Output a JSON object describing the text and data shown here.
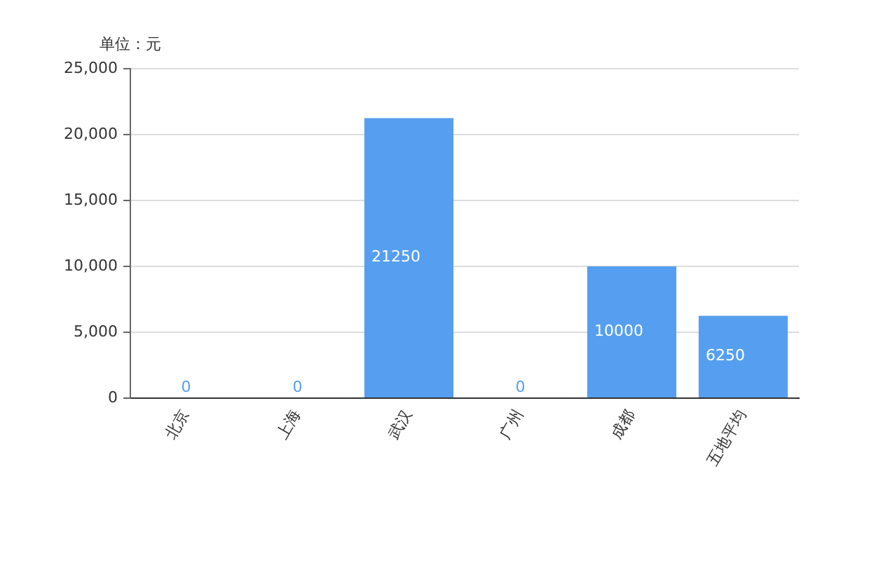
{
  "chart_data": {
    "type": "bar",
    "ylabel": "单位：元",
    "categories": [
      "北京",
      "上海",
      "武汉",
      "广州",
      "成都",
      "五地平均"
    ],
    "values": [
      0,
      0,
      21250,
      0,
      10000,
      6250
    ],
    "color": "#569ff0",
    "ylim": [
      0,
      25000
    ],
    "yticks": [
      {
        "value": 0,
        "label": "0"
      },
      {
        "value": 5000,
        "label": "5,000"
      },
      {
        "value": 10000,
        "label": "10,000"
      },
      {
        "value": 15000,
        "label": "15,000"
      },
      {
        "value": 20000,
        "label": "20,000"
      },
      {
        "value": 25000,
        "label": "25,000"
      }
    ],
    "grid": "y",
    "data_labels": true
  }
}
